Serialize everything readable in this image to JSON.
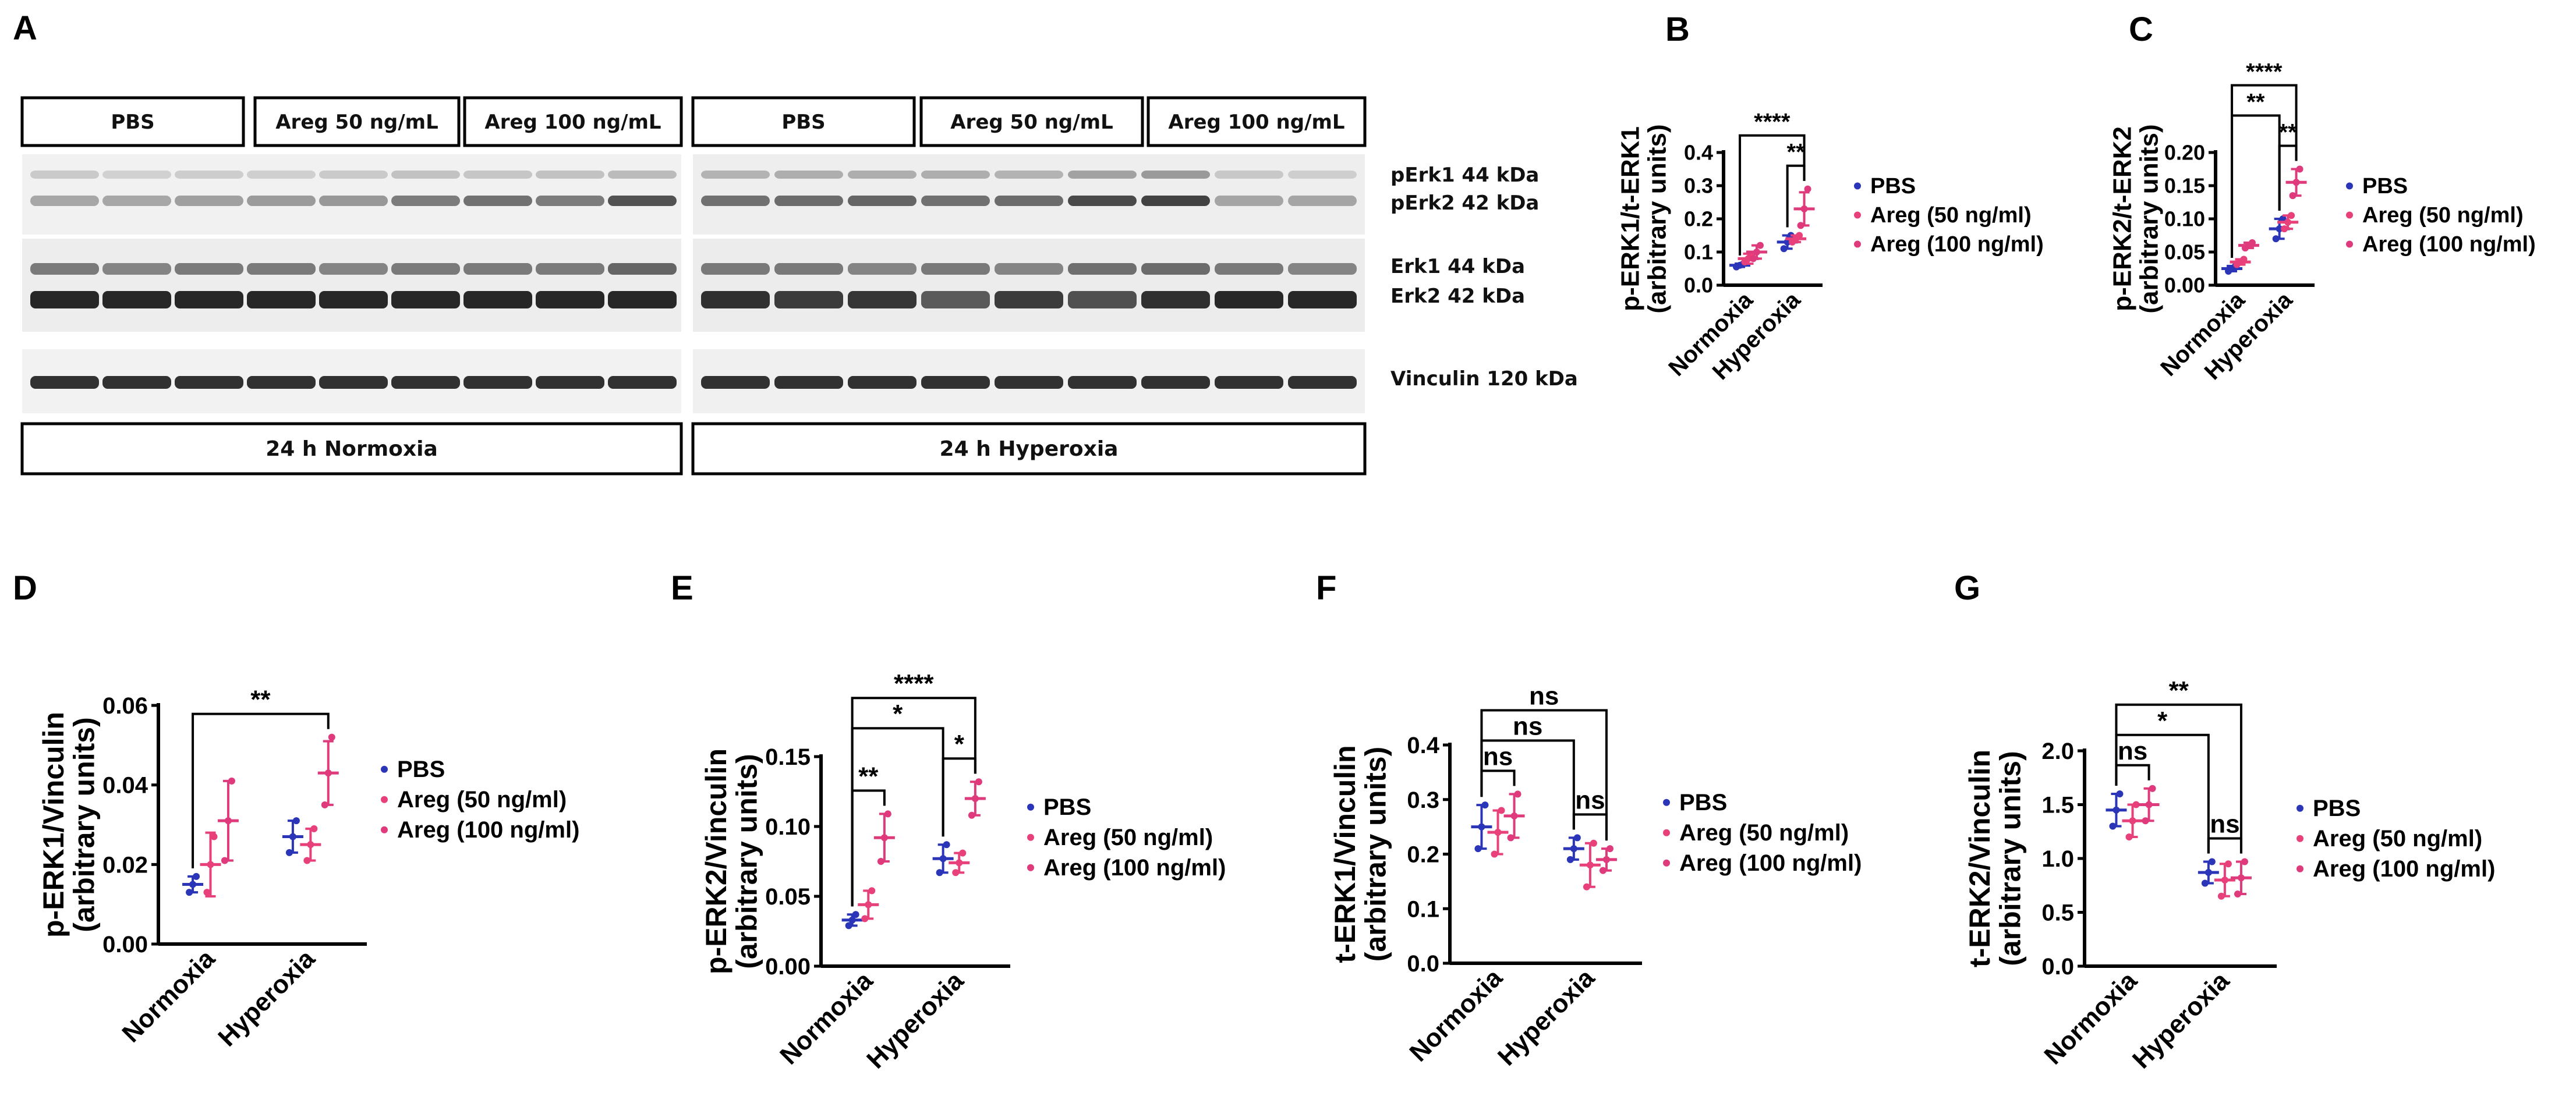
{
  "figure": {
    "blot": {
      "panel_label": "A",
      "normoxia_groups": [
        "PBS",
        "Areg 50 ng/mL",
        "Areg 100 ng/mL"
      ],
      "hyperoxia_groups": [
        "PBS",
        "Areg 50 ng/mL",
        "Areg 100 ng/mL"
      ],
      "bands": {
        "perk1": "pErk1 44 kDa",
        "perk2": "pErk2 42 kDa",
        "erk1": "Erk1 44 kDa",
        "erk2": "Erk2 42 kDa",
        "vinculin": "Vinculin 120 kDa"
      },
      "conditions": [
        "24 h Normoxia",
        "24 h Hyperoxia"
      ]
    },
    "legend": [
      "PBS",
      "Areg (50 ng/ml)",
      "Areg (100 ng/ml)"
    ],
    "colors": {
      "pbs": "#2B35B8",
      "areg50": "#E8407A",
      "areg100": "#DE3A7C",
      "band": "#1c1c1c"
    }
  },
  "chart_data": [
    {
      "panel": "B",
      "type": "scatter",
      "ylabel": [
        "p-ERK1/t-ERK1",
        "(arbitrary units)"
      ],
      "categories": [
        "Normoxia",
        "Hyperoxia"
      ],
      "ylim": [
        0,
        0.4
      ],
      "yticks": [
        "0.0",
        "0.1",
        "0.2",
        "0.3",
        "0.4"
      ],
      "series": [
        {
          "name": "PBS",
          "means": [
            0.06,
            0.13
          ],
          "sd": [
            0.005,
            0.02
          ],
          "points": [
            [
              0.055,
              0.06,
              0.065
            ],
            [
              0.11,
              0.13,
              0.15
            ]
          ]
        },
        {
          "name": "Areg (50 ng/ml)",
          "means": [
            0.08,
            0.14
          ],
          "sd": [
            0.015,
            0.01
          ],
          "points": [
            [
              0.07,
              0.08,
              0.09
            ],
            [
              0.13,
              0.14,
              0.15
            ]
          ]
        },
        {
          "name": "Areg (100 ng/ml)",
          "means": [
            0.1,
            0.23
          ],
          "sd": [
            0.02,
            0.05
          ],
          "points": [
            [
              0.08,
              0.1,
              0.12
            ],
            [
              0.18,
              0.23,
              0.29
            ]
          ]
        }
      ],
      "significance": [
        {
          "label": "****",
          "from": [
            0,
            0
          ],
          "to": [
            1,
            2
          ]
        },
        {
          "label": "**",
          "from": [
            1,
            0
          ],
          "to": [
            1,
            2
          ]
        }
      ]
    },
    {
      "panel": "C",
      "type": "scatter",
      "ylabel": [
        "p-ERK2/t-ERK2",
        "(arbitrary units)"
      ],
      "categories": [
        "Normoxia",
        "Hyperoxia"
      ],
      "ylim": [
        0,
        0.2
      ],
      "yticks": [
        "0.00",
        "0.05",
        "0.10",
        "0.15",
        "0.20"
      ],
      "series": [
        {
          "name": "PBS",
          "means": [
            0.025,
            0.085
          ],
          "sd": [
            0.004,
            0.015
          ],
          "points": [
            [
              0.021,
              0.025,
              0.029
            ],
            [
              0.07,
              0.085,
              0.1
            ]
          ]
        },
        {
          "name": "Areg (50 ng/ml)",
          "means": [
            0.035,
            0.095
          ],
          "sd": [
            0.004,
            0.01
          ],
          "points": [
            [
              0.031,
              0.035,
              0.039
            ],
            [
              0.085,
              0.095,
              0.105
            ]
          ]
        },
        {
          "name": "Areg (100 ng/ml)",
          "means": [
            0.06,
            0.155
          ],
          "sd": [
            0.004,
            0.02
          ],
          "points": [
            [
              0.056,
              0.06,
              0.064
            ],
            [
              0.135,
              0.155,
              0.175
            ]
          ]
        }
      ],
      "significance": [
        {
          "label": "****",
          "from": [
            0,
            0
          ],
          "to": [
            1,
            2
          ]
        },
        {
          "label": "**",
          "from": [
            0,
            0
          ],
          "to": [
            1,
            0
          ]
        },
        {
          "label": "**",
          "from": [
            1,
            0
          ],
          "to": [
            1,
            2
          ]
        }
      ]
    },
    {
      "panel": "D",
      "type": "scatter",
      "ylabel": [
        "p-ERK1/Vinculin",
        "(arbitrary units)"
      ],
      "categories": [
        "Normoxia",
        "Hyperoxia"
      ],
      "ylim": [
        0,
        0.06
      ],
      "yticks": [
        "0.00",
        "0.02",
        "0.04",
        "0.06"
      ],
      "series": [
        {
          "name": "PBS",
          "means": [
            0.015,
            0.027
          ],
          "sd": [
            0.002,
            0.004
          ],
          "points": [
            [
              0.013,
              0.015,
              0.017
            ],
            [
              0.023,
              0.027,
              0.031
            ]
          ]
        },
        {
          "name": "Areg (50 ng/ml)",
          "means": [
            0.02,
            0.025
          ],
          "sd": [
            0.008,
            0.004
          ],
          "points": [
            [
              0.013,
              0.02,
              0.027
            ],
            [
              0.021,
              0.025,
              0.029
            ]
          ]
        },
        {
          "name": "Areg (100 ng/ml)",
          "means": [
            0.031,
            0.043
          ],
          "sd": [
            0.01,
            0.008
          ],
          "points": [
            [
              0.021,
              0.031,
              0.041
            ],
            [
              0.035,
              0.043,
              0.052
            ]
          ]
        }
      ],
      "significance": [
        {
          "label": "**",
          "from": [
            0,
            0
          ],
          "to": [
            1,
            2
          ]
        }
      ]
    },
    {
      "panel": "E",
      "type": "scatter",
      "ylabel": [
        "p-ERK2/Vinculin",
        "(arbitrary units)"
      ],
      "categories": [
        "Normoxia",
        "Hyperoxia"
      ],
      "ylim": [
        0,
        0.15
      ],
      "yticks": [
        "0.00",
        "0.05",
        "0.10",
        "0.15"
      ],
      "series": [
        {
          "name": "PBS",
          "means": [
            0.033,
            0.077
          ],
          "sd": [
            0.004,
            0.01
          ],
          "points": [
            [
              0.029,
              0.033,
              0.037
            ],
            [
              0.067,
              0.077,
              0.087
            ]
          ]
        },
        {
          "name": "Areg (50 ng/ml)",
          "means": [
            0.044,
            0.074
          ],
          "sd": [
            0.01,
            0.007
          ],
          "points": [
            [
              0.034,
              0.044,
              0.054
            ],
            [
              0.067,
              0.074,
              0.081
            ]
          ]
        },
        {
          "name": "Areg (100 ng/ml)",
          "means": [
            0.092,
            0.12
          ],
          "sd": [
            0.017,
            0.012
          ],
          "points": [
            [
              0.075,
              0.092,
              0.109
            ],
            [
              0.108,
              0.12,
              0.132
            ]
          ]
        }
      ],
      "significance": [
        {
          "label": "****",
          "from": [
            0,
            0
          ],
          "to": [
            1,
            2
          ]
        },
        {
          "label": "*",
          "from": [
            0,
            0
          ],
          "to": [
            1,
            0
          ]
        },
        {
          "label": "**",
          "from": [
            0,
            0
          ],
          "to": [
            0,
            2
          ]
        },
        {
          "label": "*",
          "from": [
            1,
            0
          ],
          "to": [
            1,
            2
          ]
        }
      ]
    },
    {
      "panel": "F",
      "type": "scatter",
      "ylabel": [
        "t-ERK1/Vinculin",
        "(arbitrary units)"
      ],
      "categories": [
        "Normoxia",
        "Hyperoxia"
      ],
      "ylim": [
        0,
        0.4
      ],
      "yticks": [
        "0.0",
        "0.1",
        "0.2",
        "0.3",
        "0.4"
      ],
      "series": [
        {
          "name": "PBS",
          "means": [
            0.25,
            0.21
          ],
          "sd": [
            0.04,
            0.02
          ],
          "points": [
            [
              0.21,
              0.25,
              0.29
            ],
            [
              0.19,
              0.21,
              0.23
            ]
          ]
        },
        {
          "name": "Areg (50 ng/ml)",
          "means": [
            0.24,
            0.18
          ],
          "sd": [
            0.04,
            0.04
          ],
          "points": [
            [
              0.2,
              0.24,
              0.28
            ],
            [
              0.14,
              0.18,
              0.22
            ]
          ]
        },
        {
          "name": "Areg (100 ng/ml)",
          "means": [
            0.27,
            0.19
          ],
          "sd": [
            0.04,
            0.02
          ],
          "points": [
            [
              0.23,
              0.27,
              0.31
            ],
            [
              0.17,
              0.19,
              0.21
            ]
          ]
        }
      ],
      "significance": [
        {
          "label": "ns",
          "from": [
            0,
            0
          ],
          "to": [
            1,
            2
          ]
        },
        {
          "label": "ns",
          "from": [
            0,
            0
          ],
          "to": [
            1,
            0
          ]
        },
        {
          "label": "ns",
          "from": [
            0,
            0
          ],
          "to": [
            0,
            2
          ]
        },
        {
          "label": "ns",
          "from": [
            1,
            0
          ],
          "to": [
            1,
            2
          ]
        }
      ]
    },
    {
      "panel": "G",
      "type": "scatter",
      "ylabel": [
        "t-ERK2/Vinculin",
        "(arbitrary units)"
      ],
      "categories": [
        "Normoxia",
        "Hyperoxia"
      ],
      "ylim": [
        0,
        2.0
      ],
      "yticks": [
        "0.0",
        "0.5",
        "1.0",
        "1.5",
        "2.0"
      ],
      "series": [
        {
          "name": "PBS",
          "means": [
            1.45,
            0.87
          ],
          "sd": [
            0.15,
            0.1
          ],
          "points": [
            [
              1.3,
              1.45,
              1.6
            ],
            [
              0.77,
              0.87,
              0.97
            ]
          ]
        },
        {
          "name": "Areg (50 ng/ml)",
          "means": [
            1.35,
            0.8
          ],
          "sd": [
            0.15,
            0.15
          ],
          "points": [
            [
              1.2,
              1.35,
              1.5
            ],
            [
              0.65,
              0.8,
              0.95
            ]
          ]
        },
        {
          "name": "Areg (100 ng/ml)",
          "means": [
            1.5,
            0.82
          ],
          "sd": [
            0.15,
            0.15
          ],
          "points": [
            [
              1.35,
              1.5,
              1.65
            ],
            [
              0.67,
              0.82,
              0.97
            ]
          ]
        }
      ],
      "significance": [
        {
          "label": "**",
          "from": [
            0,
            0
          ],
          "to": [
            1,
            2
          ]
        },
        {
          "label": "*",
          "from": [
            0,
            0
          ],
          "to": [
            1,
            0
          ]
        },
        {
          "label": "ns",
          "from": [
            0,
            0
          ],
          "to": [
            0,
            2
          ]
        },
        {
          "label": "ns",
          "from": [
            1,
            0
          ],
          "to": [
            1,
            2
          ]
        }
      ]
    }
  ]
}
